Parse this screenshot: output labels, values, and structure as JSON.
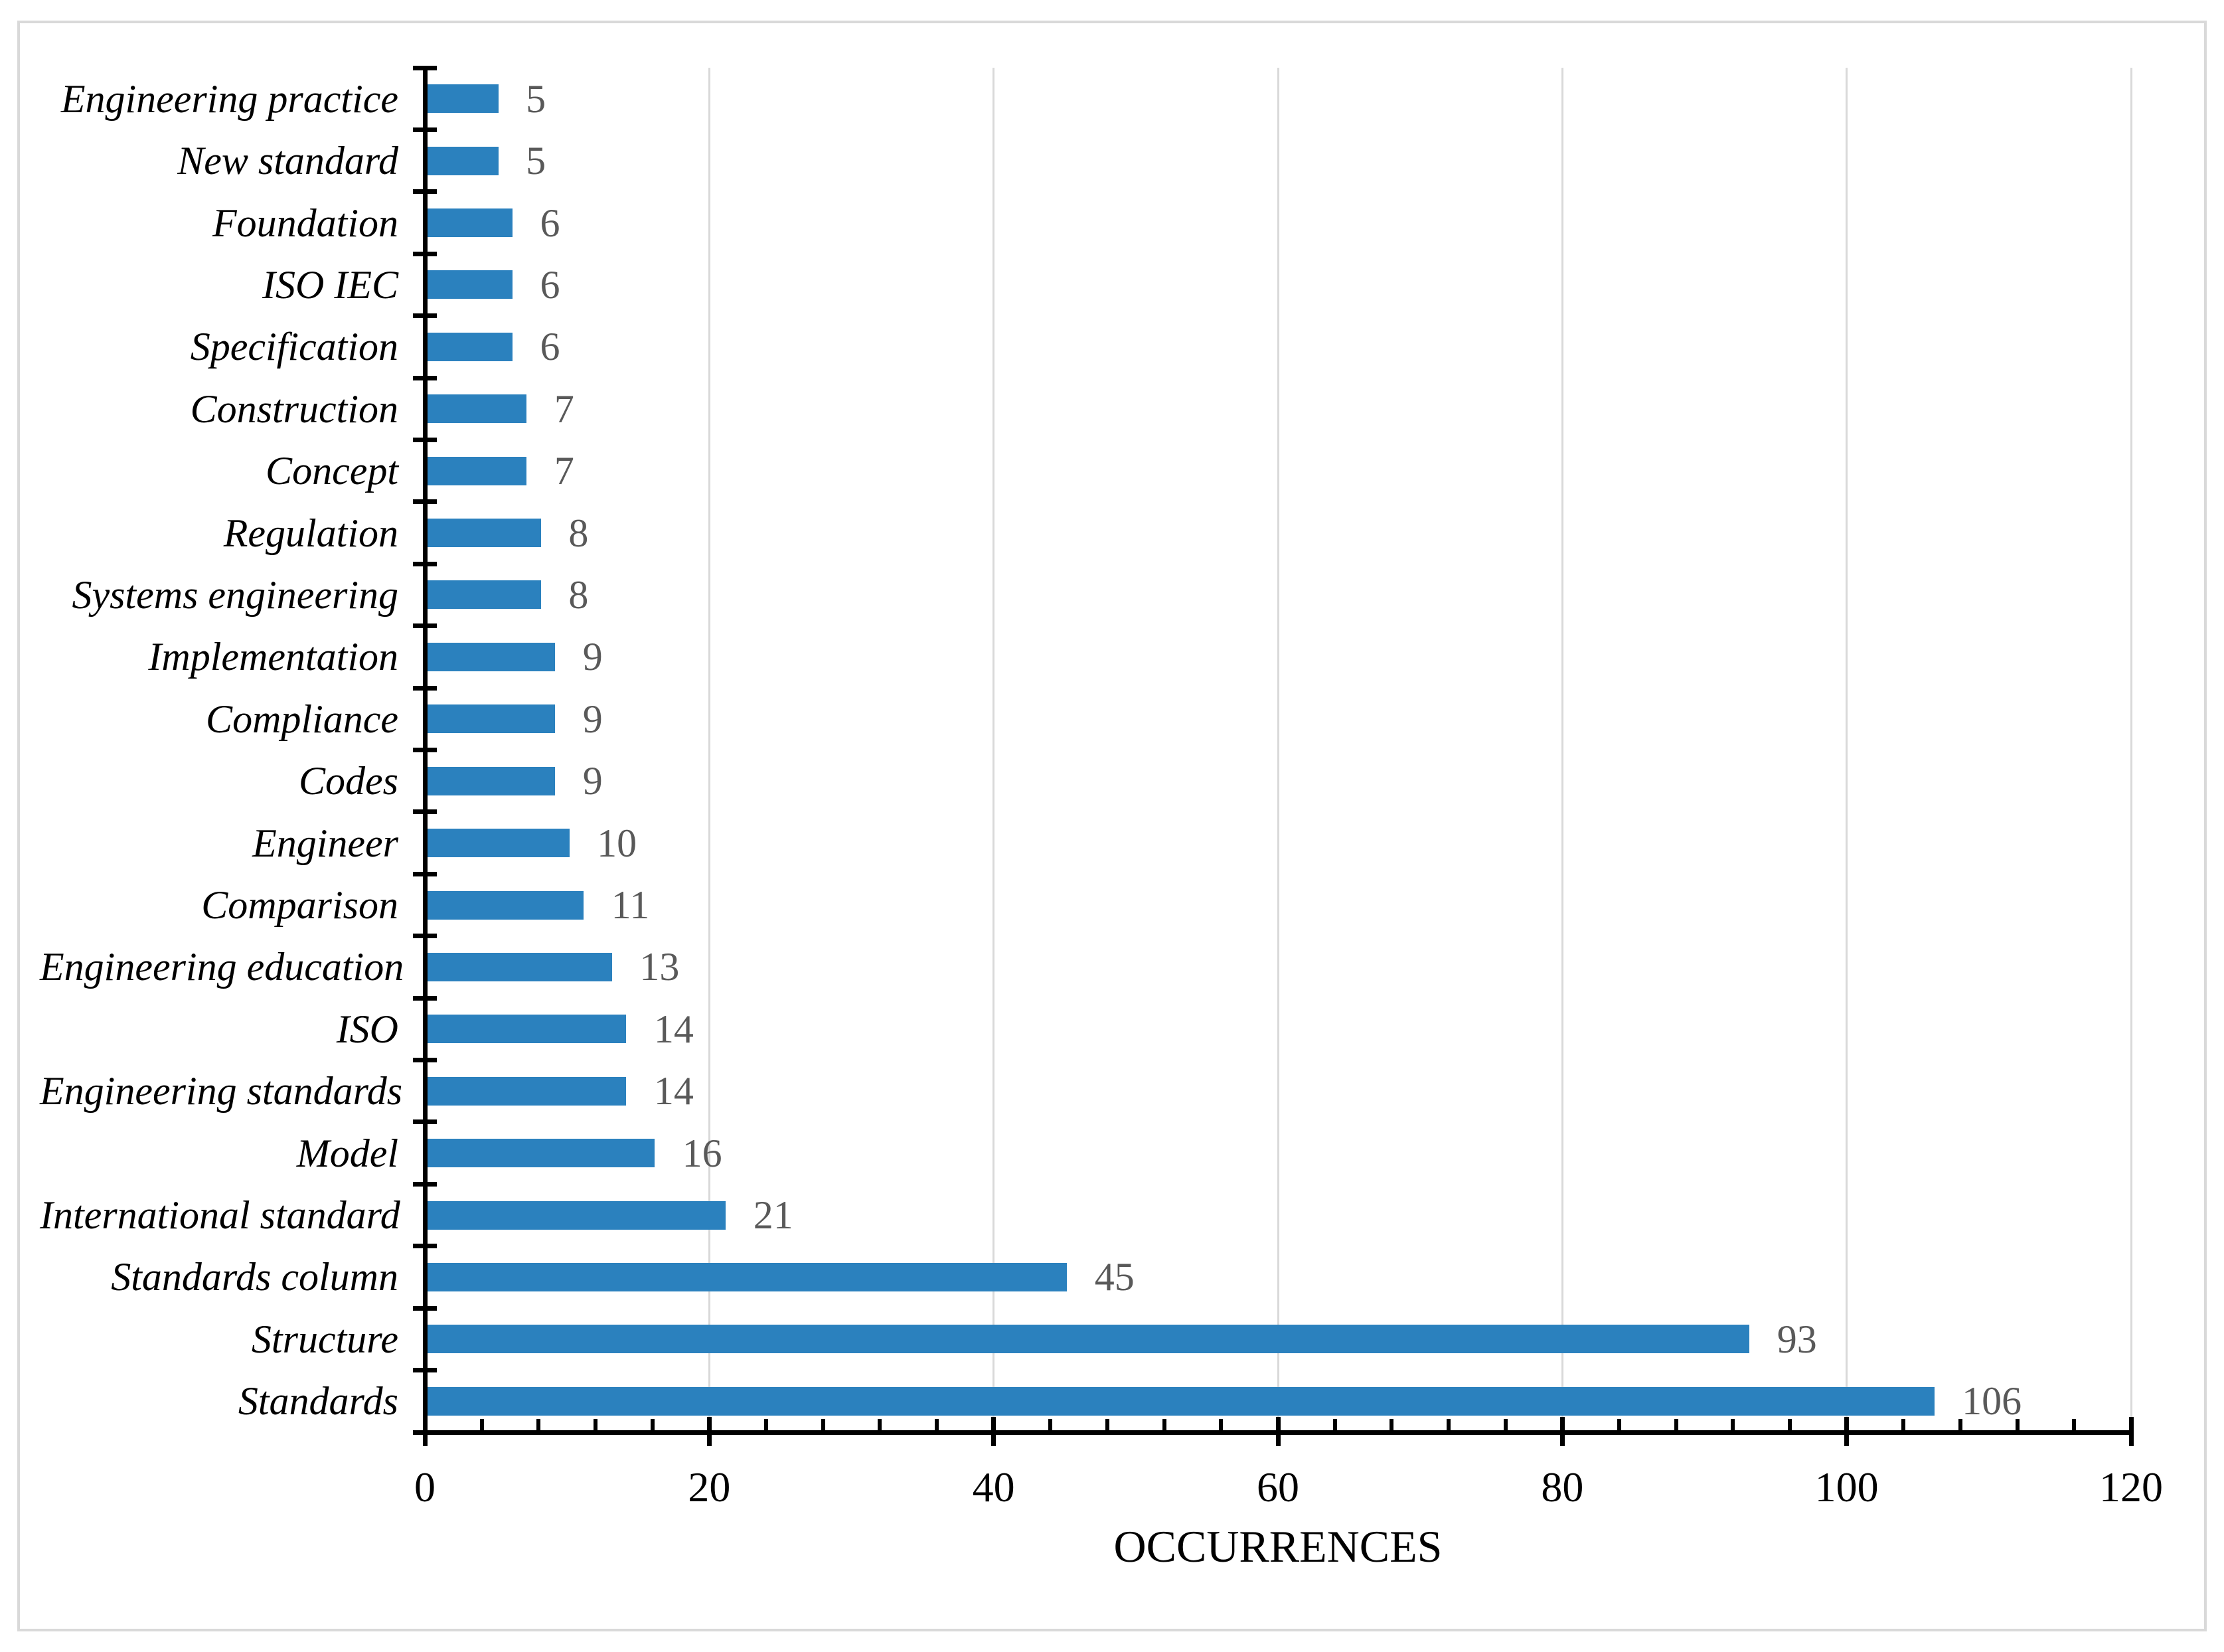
{
  "chart_data": {
    "type": "bar",
    "orientation": "horizontal",
    "title": "",
    "xlabel": "OCCURRENCES",
    "ylabel": "",
    "categories": [
      "Engineering practice",
      "New standard",
      "Foundation",
      "ISO IEC",
      "Specification",
      "Construction",
      "Concept",
      "Regulation",
      "Systems engineering",
      "Implementation",
      "Compliance",
      "Codes",
      "Engineer",
      "Comparison",
      "Engineering education",
      "ISO",
      "Engineering standards",
      "Model",
      "International standard",
      "Standards column",
      "Structure",
      "Standards"
    ],
    "values": [
      5,
      5,
      6,
      6,
      6,
      7,
      7,
      8,
      8,
      9,
      9,
      9,
      10,
      11,
      13,
      14,
      14,
      16,
      21,
      45,
      93,
      106
    ],
    "value_labels_shown": true,
    "xlim": [
      0,
      120
    ],
    "xticks": [
      0,
      20,
      40,
      60,
      80,
      100,
      120
    ],
    "x_minor_unit": 4,
    "grid": "vertical-major-gridlines",
    "legend": "none",
    "colors": {
      "bar": "#2b81be",
      "value_label": "#595959",
      "category_label": "#000000",
      "tick_label": "#000000",
      "axis": "#000000",
      "gridline": "#d9d9d9",
      "frame_border": "#d9d9d9",
      "background": "#ffffff"
    }
  }
}
